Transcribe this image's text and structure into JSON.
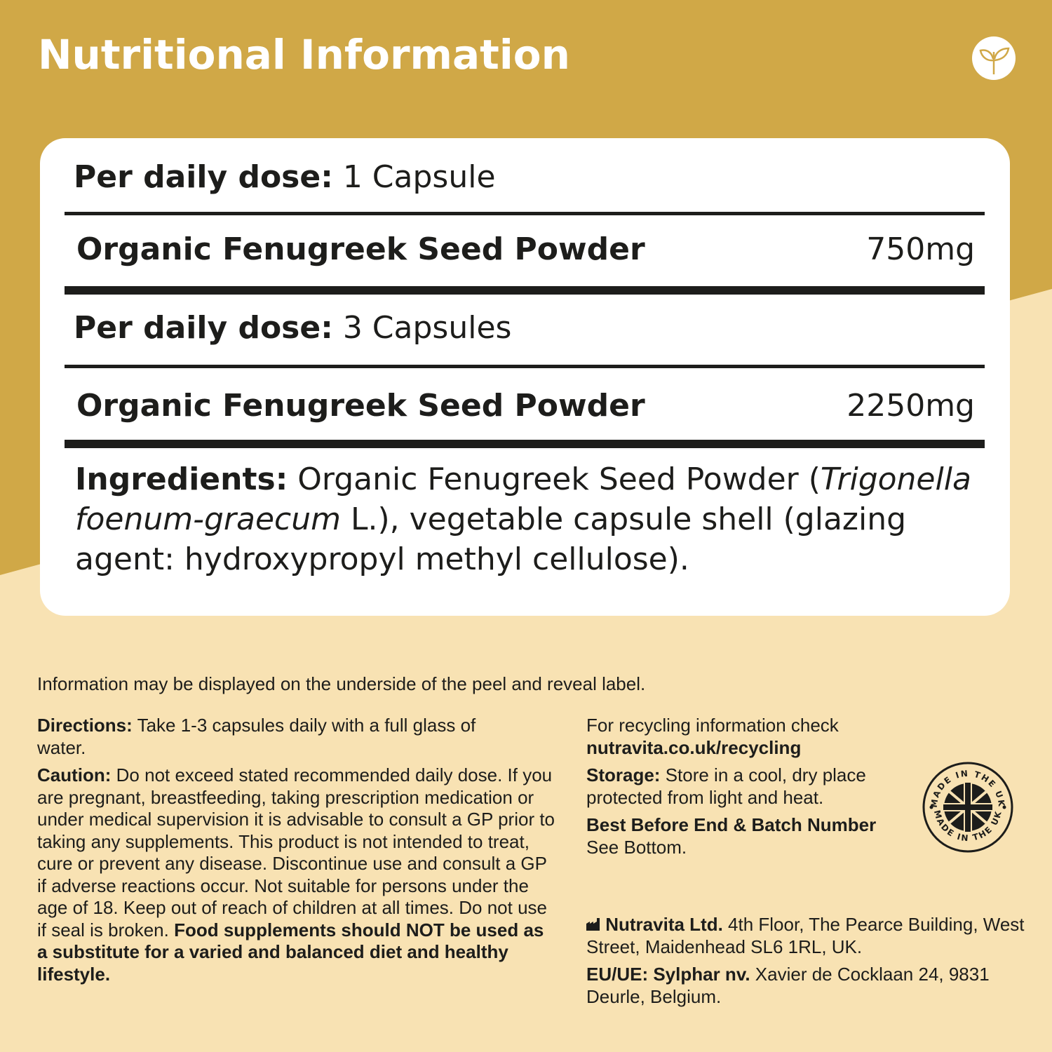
{
  "header": {
    "title": "Nutritional Information",
    "icon": "leaf-sprout-icon"
  },
  "colors": {
    "gold": "#D0A847",
    "cream": "#F8E2B3",
    "text": "#1d1d1b"
  },
  "table": {
    "dose1": {
      "label": "Per daily dose:",
      "value": "1 Capsule"
    },
    "row1": {
      "name": "Organic Fenugreek Seed Powder",
      "amount": "750mg"
    },
    "dose2": {
      "label": "Per daily dose:",
      "value": "3 Capsules"
    },
    "row2": {
      "name": "Organic Fenugreek Seed Powder",
      "amount": "2250mg"
    },
    "ingredients": {
      "label": "Ingredients:",
      "text1": " Organic Fenugreek Seed Powder (",
      "latin": "Trigonella foenum-graecum",
      "text2": " L.), vegetable capsule shell (glazing agent: hydroxypropyl methyl cellulose)."
    }
  },
  "info": "Information may be displayed on the underside of the peel and reveal label.",
  "directions": {
    "label": "Directions:",
    "text": " Take 1-3 capsules daily with  a full glass of water."
  },
  "caution": {
    "label": "Caution:",
    "text": " Do not exceed stated  recommended daily dose. If you are pregnant, breastfeeding, taking prescription medication or under medical supervision it is advisable to consult a GP prior to taking any supplements. This product is not intended to treat, cure or prevent any disease. Discontinue use and consult a GP  if adverse reactions occur. Not suitable for persons under the age of 18. Keep out of reach of children at all times. Do not use if seal is broken. ",
    "bold": "Food supplements should NOT be used as a substitute for a varied  and balanced diet and healthy lifestyle."
  },
  "recycling": {
    "text": "For recycling information check",
    "link": "nutravita.co.uk/recycling"
  },
  "storage": {
    "label": "Storage:",
    "text": " Store in a cool, dry place protected from light and heat."
  },
  "best_before": {
    "label": "Best Before End & Batch Number",
    "text": "See Bottom."
  },
  "badge": {
    "text": "MADE IN THE UK"
  },
  "manufacturer": {
    "icon": "factory-icon",
    "name": "Nutravita Ltd.",
    "address": " 4th Floor, The Pearce Building, West Street, Maidenhead SL6 1RL, UK."
  },
  "eu": {
    "label": "EU/UE: Sylphar nv.",
    "address": " Xavier de Cocklaan 24, 9831 Deurle, Belgium."
  }
}
